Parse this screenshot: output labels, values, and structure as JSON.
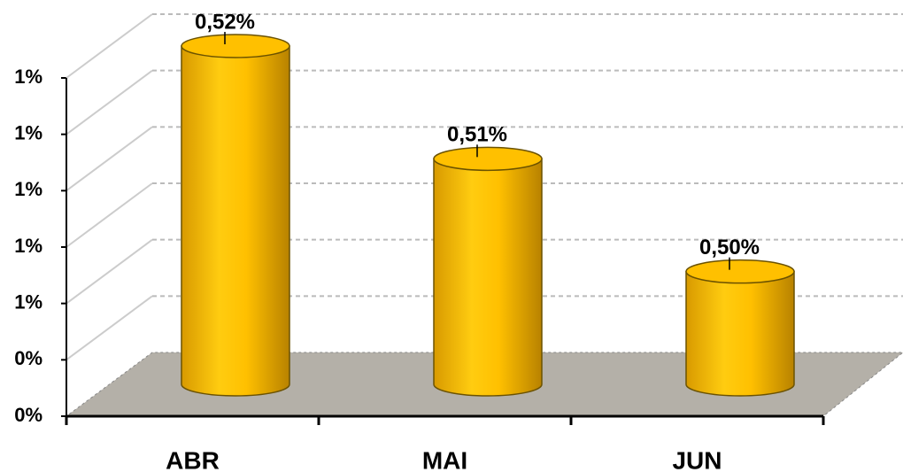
{
  "chart_data": {
    "type": "bar",
    "categories": [
      "ABR",
      "MAI",
      "JUN"
    ],
    "values": [
      0.52,
      0.51,
      0.5
    ],
    "value_labels": [
      "0,52%",
      "0,51%",
      "0,50%"
    ],
    "color": "#ffc000",
    "ylim": [
      0.49,
      0.52
    ],
    "yticks": [
      {
        "value": 0.49,
        "label": "0%"
      },
      {
        "value": 0.495,
        "label": "0%"
      },
      {
        "value": 0.5,
        "label": "1%"
      },
      {
        "value": 0.505,
        "label": "1%"
      },
      {
        "value": 0.51,
        "label": "1%"
      },
      {
        "value": 0.515,
        "label": "1%"
      },
      {
        "value": 0.52,
        "label": "1%"
      }
    ],
    "grid": true
  }
}
